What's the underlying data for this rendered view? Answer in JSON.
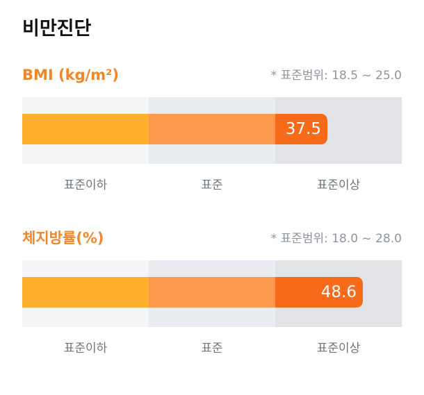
{
  "page": {
    "title": "비만진단"
  },
  "sections": [
    {
      "title": "BMI (kg/m²)",
      "note": "* 표준범위: 18.5 ~ 25.0",
      "value": "37.5",
      "bar_fill_fraction": 0.804,
      "zone_labels": [
        "표준이하",
        "표준",
        "표준이상"
      ]
    },
    {
      "title": "체지방률(%)",
      "note": "* 표준범위: 18.0 ~ 28.0",
      "value": "48.6",
      "bar_fill_fraction": 0.897,
      "zone_labels": [
        "표준이하",
        "표준",
        "표준이상"
      ]
    }
  ],
  "colors": {
    "section_title": "#f0862a",
    "bar_low": "#fdaf2e",
    "bar_normal": "#fd994c",
    "bar_high": "#f56b1a",
    "zone_low": "#f4f5f7",
    "zone_normal": "#e9ecf0",
    "zone_high": "#e1e3e7"
  }
}
